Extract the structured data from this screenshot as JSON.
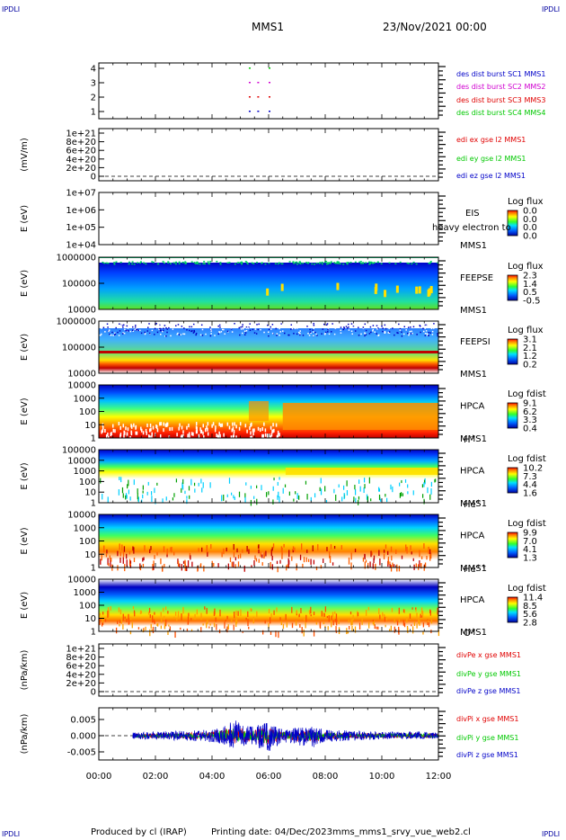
{
  "corner_labels": {
    "top_left": "IPDLI",
    "top_right": "IPDLI",
    "bottom_left": "IPDLI",
    "bottom_right": "IPDLI"
  },
  "header": {
    "mission": "MMS1",
    "date": "23/Nov/2021 00:00"
  },
  "footer": {
    "produced_by": "Produced by cl (IRAP)",
    "printing_date": "Printing date: 04/Dec/2023",
    "script": "mms_mms1_srvy_vue_web2.cl"
  },
  "x_axis": {
    "ticks": [
      "00:00",
      "02:00",
      "04:00",
      "06:00",
      "08:00",
      "10:00",
      "12:00"
    ]
  },
  "colors": {
    "legend_blue": "#0000c8",
    "legend_red": "#e00000",
    "legend_green": "#00c800",
    "legend_magenta": "#d000d0",
    "axis": "#000000"
  },
  "panels": [
    {
      "id": "dist",
      "ylabel": "",
      "yticks": [
        "1",
        "2",
        "3",
        "4"
      ],
      "legend": [
        {
          "text": "des dist burst SC1 MMS1",
          "color": "#0000c8"
        },
        {
          "text": "des dist burst SC2 MMS2",
          "color": "#d000d0"
        },
        {
          "text": "des dist burst SC3 MMS3",
          "color": "#e00000"
        },
        {
          "text": "des dist burst SC4 MMS4",
          "color": "#00c800"
        }
      ]
    },
    {
      "id": "edi",
      "ylabel": "(mV/m)",
      "yticks": [
        "1e+21",
        "8e+20",
        "6e+20",
        "4e+20",
        "2e+20",
        "0"
      ],
      "legend": [
        {
          "text": "edi ex gse l2 MMS1",
          "color": "#e00000"
        },
        {
          "text": "edi ey gse l2 MMS1",
          "color": "#00c800"
        },
        {
          "text": "edi ez gse l2 MMS1",
          "color": "#0000c8"
        }
      ]
    },
    {
      "id": "eis",
      "ylabel": "E (eV)",
      "yticks": [
        "1e+07",
        "1e+06",
        "1e+05",
        "1e+04"
      ],
      "side": [
        "EIS",
        "MMS1"
      ],
      "overlay": "heavy electron to",
      "cbar_title": "Log flux",
      "cbar_ticks": [
        "0.0",
        "0.0",
        "0.0",
        "0.0"
      ]
    },
    {
      "id": "feepse",
      "ylabel": "E (eV)",
      "yticks": [
        "1000000",
        "100000",
        "10000"
      ],
      "side": [
        "FEEPSE",
        "MMS1"
      ],
      "cbar_title": "Log flux",
      "cbar_ticks": [
        "2.3",
        "1.4",
        "0.5",
        "-0.5"
      ]
    },
    {
      "id": "feepsi",
      "ylabel": "E (eV)",
      "yticks": [
        "1000000",
        "100000",
        "10000"
      ],
      "side": [
        "FEEPSI",
        "MMS1"
      ],
      "cbar_title": "Log flux",
      "cbar_ticks": [
        "3.1",
        "2.1",
        "1.2",
        "0.2"
      ]
    },
    {
      "id": "hpca_h",
      "ylabel": "E (eV)",
      "yticks": [
        "10000",
        "1000",
        "100",
        "10",
        "1"
      ],
      "side": [
        "HPCA",
        "MMS1"
      ],
      "species": "H",
      "species_sup": "+",
      "cbar_title": "Log fdist",
      "cbar_ticks": [
        "9.1",
        "6.2",
        "3.3",
        "0.4"
      ]
    },
    {
      "id": "hpca_he",
      "ylabel": "E (eV)",
      "yticks": [
        "100000",
        "10000",
        "1000",
        "100",
        "10",
        "1"
      ],
      "side": [
        "HPCA",
        "MMS1"
      ],
      "species": "He",
      "species_sup": "+",
      "cbar_title": "Log fdist",
      "cbar_ticks": [
        "10.2",
        "7.3",
        "4.4",
        "1.6"
      ]
    },
    {
      "id": "hpca_hepp",
      "ylabel": "E (eV)",
      "yticks": [
        "10000",
        "1000",
        "100",
        "10",
        "1"
      ],
      "side": [
        "HPCA",
        "MMS1"
      ],
      "species": "He",
      "species_sup": "++",
      "cbar_title": "Log fdist",
      "cbar_ticks": [
        "9.9",
        "7.0",
        "4.1",
        "1.3"
      ]
    },
    {
      "id": "hpca_o",
      "ylabel": "E (eV)",
      "yticks": [
        "10000",
        "1000",
        "100",
        "10",
        "1"
      ],
      "side": [
        "HPCA",
        "MMS1"
      ],
      "species": "O",
      "species_sup": "+",
      "cbar_title": "Log fdist",
      "cbar_ticks": [
        "11.4",
        "8.5",
        "5.6",
        "2.8"
      ]
    },
    {
      "id": "divpe",
      "ylabel": "(nPa/km)",
      "yticks": [
        "1e+21",
        "8e+20",
        "6e+20",
        "4e+20",
        "2e+20",
        "0"
      ],
      "legend": [
        {
          "text": "divPe x gse MMS1",
          "color": "#e00000"
        },
        {
          "text": "divPe y gse MMS1",
          "color": "#00c800"
        },
        {
          "text": "divPe z gse MMS1",
          "color": "#0000c8"
        }
      ]
    },
    {
      "id": "divpi",
      "ylabel": "(nPa/km)",
      "yticks": [
        "0.005",
        "0.000",
        "-0.005"
      ],
      "legend": [
        {
          "text": "divPi x gse MMS1",
          "color": "#e00000"
        },
        {
          "text": "divPi y gse MMS1",
          "color": "#00c800"
        },
        {
          "text": "divPi z gse MMS1",
          "color": "#0000c8"
        }
      ]
    }
  ],
  "chart_data": {
    "type": "line",
    "x_unit": "UT hours",
    "xlim": [
      0,
      12
    ],
    "burst_markers": [
      {
        "sc": "SC4",
        "times": [
          5.3,
          6.0
        ]
      },
      {
        "sc": "SC3",
        "times": [
          5.3,
          5.6,
          6.0
        ]
      },
      {
        "sc": "SC2",
        "times": [
          5.3,
          5.6,
          6.0
        ]
      },
      {
        "sc": "SC1",
        "times": [
          5.3,
          5.6,
          6.0
        ]
      }
    ],
    "divPi_ylim": [
      -0.008,
      0.008
    ],
    "divPi_start_hour": 1.2,
    "divPi_envelope": {
      "x": [
        1.2,
        2,
        3,
        4,
        4.8,
        5.2,
        6.0,
        6.5,
        7.5,
        8.0,
        9,
        10,
        11,
        12
      ],
      "z_max": [
        0.001,
        0.0012,
        0.0015,
        0.002,
        0.005,
        0.003,
        0.004,
        0.002,
        0.003,
        0.002,
        0.0015,
        0.0012,
        0.0015,
        0.001
      ],
      "x_min": [
        -0.001,
        -0.0012,
        -0.0015,
        -0.002,
        -0.004,
        -0.003,
        -0.005,
        -0.002,
        -0.004,
        -0.002,
        -0.0015,
        -0.0012,
        -0.001,
        -0.001
      ]
    }
  }
}
